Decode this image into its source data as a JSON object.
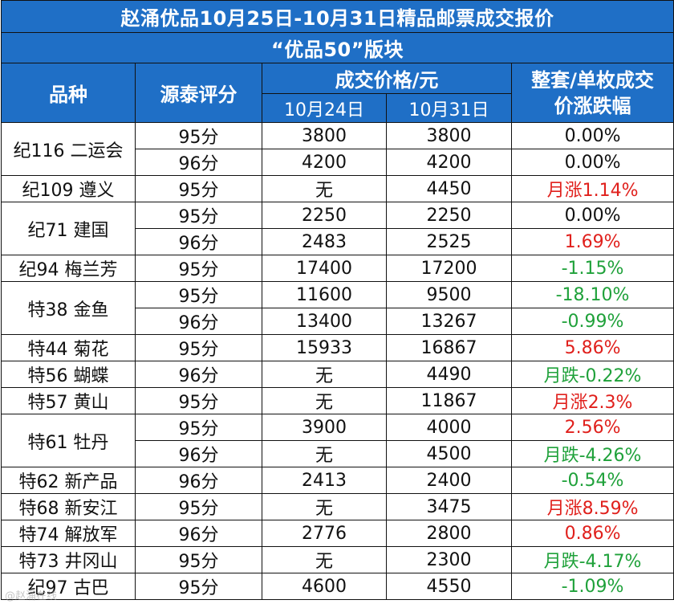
{
  "title": "赵涌优品10月25日-10月31日精品邮票成交报价",
  "subtitle": "“优品50”版块",
  "headers": {
    "variety": "品种",
    "score": "源泰评分",
    "price": "成交价格/元",
    "date1": "10月24日",
    "date2": "10月31日",
    "change_line1": "整套/单枚成交",
    "change_line2": "价涨跌幅"
  },
  "groups": [
    {
      "name": "纪116 二运会",
      "rows": [
        {
          "score": "95分",
          "p1": "3800",
          "p2": "3800",
          "chg": "0.00%",
          "color": "black"
        },
        {
          "score": "96分",
          "p1": "4200",
          "p2": "4200",
          "chg": "0.00%",
          "color": "black"
        }
      ]
    },
    {
      "name": "纪109 遵义",
      "rows": [
        {
          "score": "95分",
          "p1": "无",
          "p2": "4450",
          "chg": "月涨1.14%",
          "color": "red"
        }
      ]
    },
    {
      "name": "纪71 建国",
      "rows": [
        {
          "score": "95分",
          "p1": "2250",
          "p2": "2250",
          "chg": "0.00%",
          "color": "black"
        },
        {
          "score": "96分",
          "p1": "2483",
          "p2": "2525",
          "chg": "1.69%",
          "color": "red"
        }
      ]
    },
    {
      "name": "纪94 梅兰芳",
      "rows": [
        {
          "score": "95分",
          "p1": "17400",
          "p2": "17200",
          "chg": "-1.15%",
          "color": "green"
        }
      ]
    },
    {
      "name": "特38 金鱼",
      "rows": [
        {
          "score": "95分",
          "p1": "11600",
          "p2": "9500",
          "chg": "-18.10%",
          "color": "green"
        },
        {
          "score": "96分",
          "p1": "13400",
          "p2": "13267",
          "chg": "-0.99%",
          "color": "green"
        }
      ]
    },
    {
      "name": "特44 菊花",
      "rows": [
        {
          "score": "95分",
          "p1": "15933",
          "p2": "16867",
          "chg": "5.86%",
          "color": "red"
        }
      ]
    },
    {
      "name": "特56 蝴蝶",
      "rows": [
        {
          "score": "96分",
          "p1": "无",
          "p2": "4490",
          "chg": "月跌-0.22%",
          "color": "green"
        }
      ]
    },
    {
      "name": "特57 黄山",
      "rows": [
        {
          "score": "95分",
          "p1": "无",
          "p2": "11867",
          "chg": "月涨2.3%",
          "color": "red"
        }
      ]
    },
    {
      "name": "特61 牡丹",
      "rows": [
        {
          "score": "95分",
          "p1": "3900",
          "p2": "4000",
          "chg": "2.56%",
          "color": "red"
        },
        {
          "score": "96分",
          "p1": "无",
          "p2": "4500",
          "chg": "月跌-4.26%",
          "color": "green"
        }
      ]
    },
    {
      "name": "特62 新产品",
      "rows": [
        {
          "score": "96分",
          "p1": "2413",
          "p2": "2400",
          "chg": "-0.54%",
          "color": "green"
        }
      ]
    },
    {
      "name": "特68 新安江",
      "rows": [
        {
          "score": "95分",
          "p1": "无",
          "p2": "3475",
          "chg": "月涨8.59%",
          "color": "red"
        }
      ]
    },
    {
      "name": "特74 解放军",
      "rows": [
        {
          "score": "96分",
          "p1": "2776",
          "p2": "2800",
          "chg": "0.86%",
          "color": "red"
        }
      ]
    },
    {
      "name": "特73 井冈山",
      "rows": [
        {
          "score": "95分",
          "p1": "无",
          "p2": "2300",
          "chg": "月跌-4.17%",
          "color": "green"
        }
      ]
    },
    {
      "name": "纪97 古巴",
      "rows": [
        {
          "score": "95分",
          "p1": "4600",
          "p2": "4550",
          "chg": "-1.09%",
          "color": "green"
        }
      ]
    }
  ],
  "watermark": "@赵涌在线",
  "colors": {
    "header_bg": "#1f6fc6",
    "up": "#e0201c",
    "down": "#1fa13a"
  }
}
